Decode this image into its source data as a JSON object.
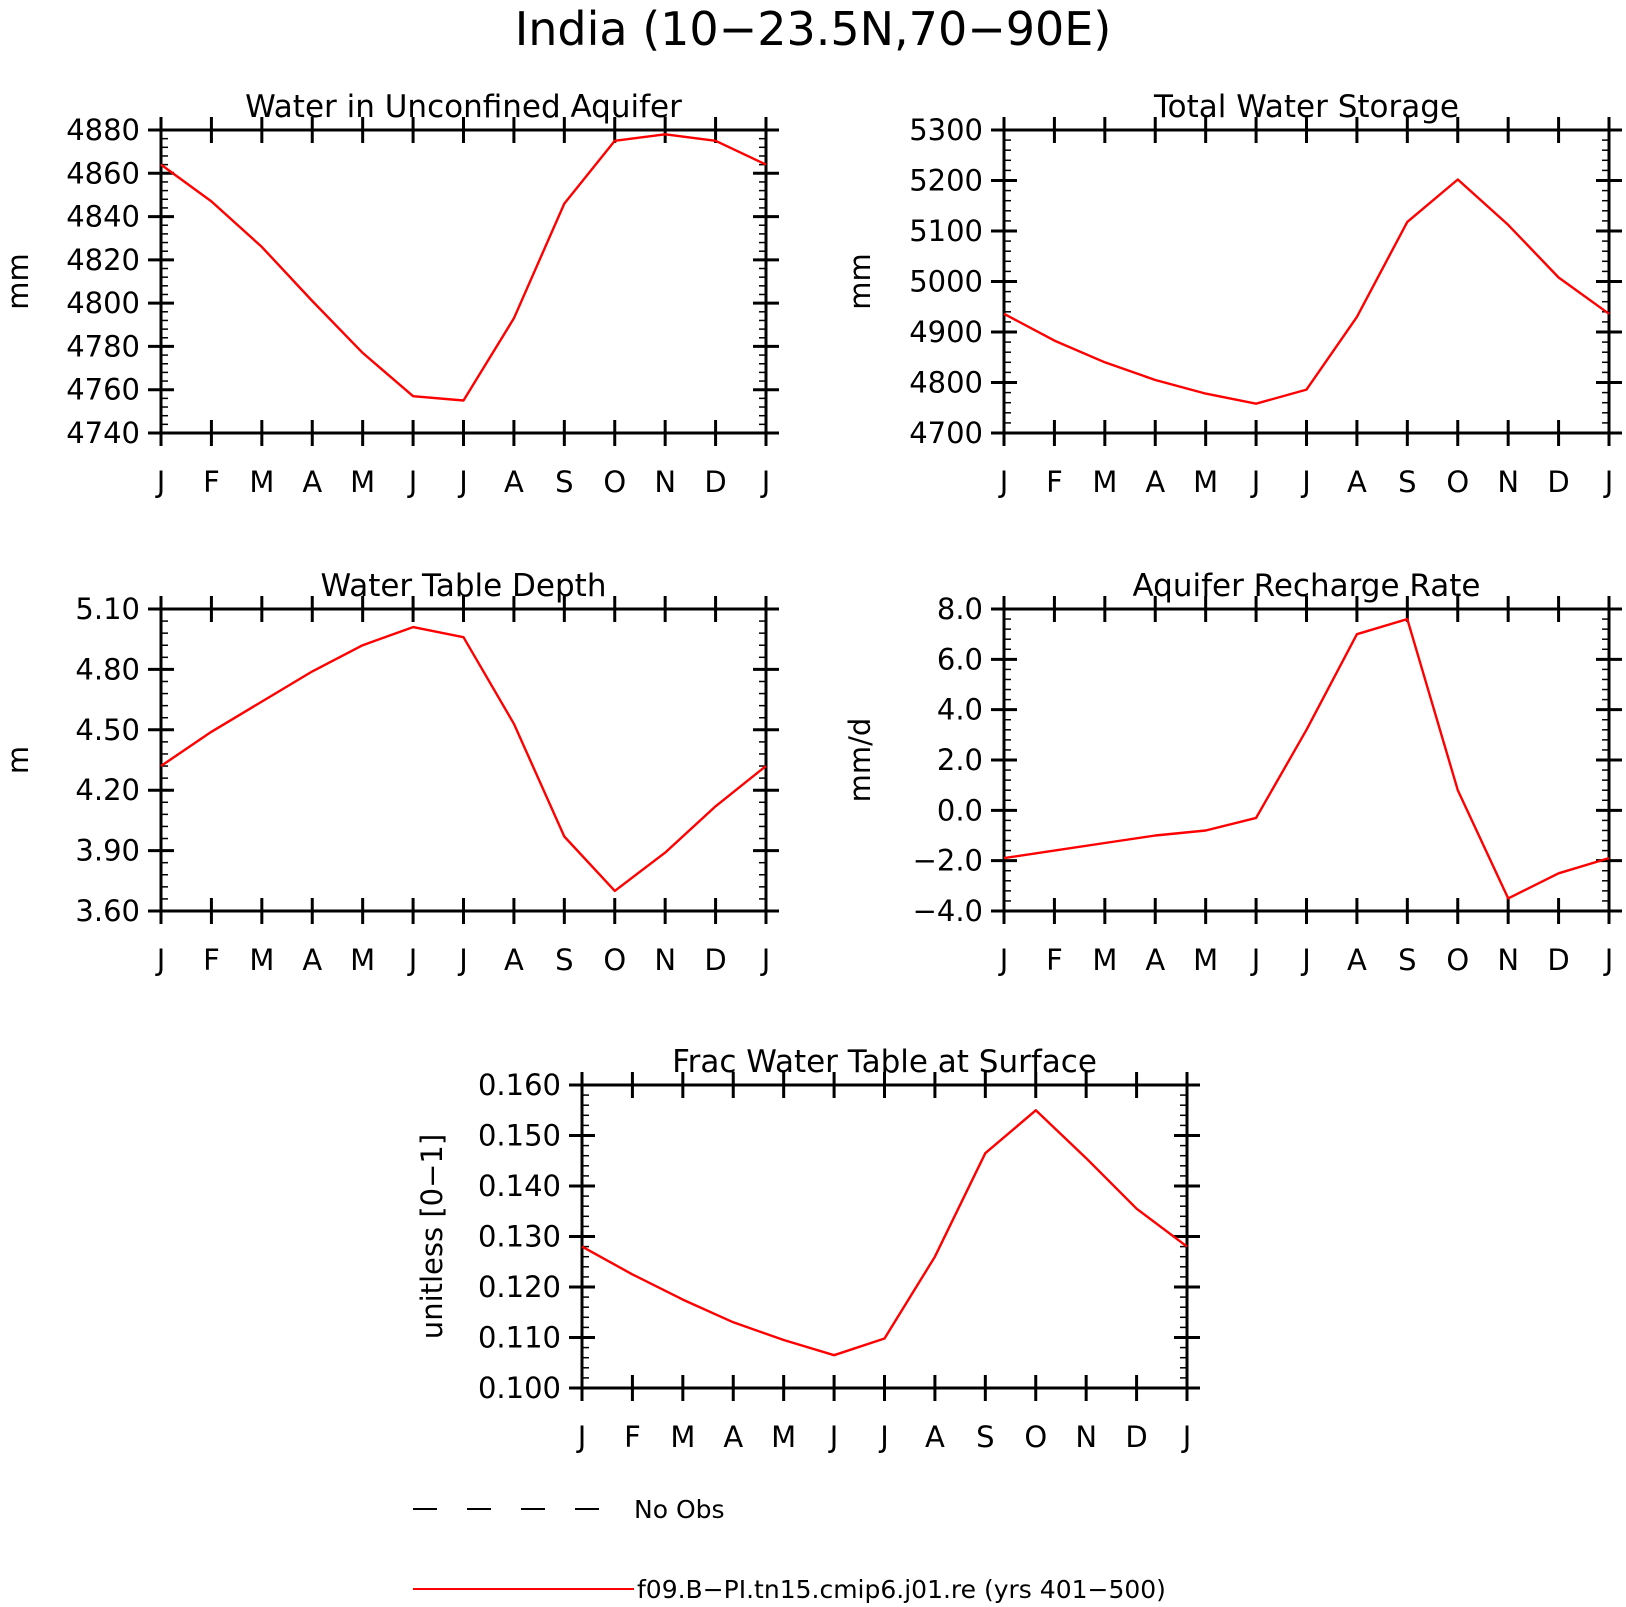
{
  "figure_title": "India (10−23.5N,70−90E)",
  "months": [
    "J",
    "F",
    "M",
    "A",
    "M",
    "J",
    "J",
    "A",
    "S",
    "O",
    "N",
    "D",
    "J"
  ],
  "colors": {
    "model": "#ff0000",
    "axes": "#000000"
  },
  "legend": {
    "no_obs_label": "No Obs",
    "model_label": "f09.B−PI.tn15.cmip6.j01.re (yrs 401−500)"
  },
  "chart_data": [
    {
      "type": "line",
      "title": "Water in Unconfined Aquifer",
      "ylabel": "mm",
      "ylim": [
        4740,
        4880
      ],
      "yticks": [
        4740,
        4760,
        4780,
        4800,
        4820,
        4840,
        4860,
        4880
      ],
      "ytick_labels": [
        "4740",
        "4760",
        "4780",
        "4800",
        "4820",
        "4840",
        "4860",
        "4880"
      ],
      "minor_step": 4,
      "categories": [
        "J",
        "F",
        "M",
        "A",
        "M",
        "J",
        "J",
        "A",
        "S",
        "O",
        "N",
        "D",
        "J"
      ],
      "values": [
        4864,
        4847,
        4826,
        4801,
        4777,
        4757,
        4755,
        4793,
        4846,
        4875,
        4878,
        4875,
        4864
      ]
    },
    {
      "type": "line",
      "title": "Total Water Storage",
      "ylabel": "mm",
      "ylim": [
        4700,
        5300
      ],
      "yticks": [
        4700,
        4800,
        4900,
        5000,
        5100,
        5200,
        5300
      ],
      "ytick_labels": [
        "4700",
        "4800",
        "4900",
        "5000",
        "5100",
        "5200",
        "5300"
      ],
      "minor_step": 20,
      "categories": [
        "J",
        "F",
        "M",
        "A",
        "M",
        "J",
        "J",
        "A",
        "S",
        "O",
        "N",
        "D",
        "J"
      ],
      "values": [
        4936,
        4883,
        4840,
        4805,
        4778,
        4758,
        4786,
        4930,
        5118,
        5202,
        5112,
        5008,
        4936
      ]
    },
    {
      "type": "line",
      "title": "Water Table Depth",
      "ylabel": "m",
      "ylim": [
        3.6,
        5.1
      ],
      "yticks": [
        3.6,
        3.9,
        4.2,
        4.5,
        4.8,
        5.1
      ],
      "ytick_labels": [
        "3.60",
        "3.90",
        "4.20",
        "4.50",
        "4.80",
        "5.10"
      ],
      "minor_step": 0.06,
      "categories": [
        "J",
        "F",
        "M",
        "A",
        "M",
        "J",
        "J",
        "A",
        "S",
        "O",
        "N",
        "D",
        "J"
      ],
      "values": [
        4.32,
        4.49,
        4.64,
        4.79,
        4.92,
        5.01,
        4.96,
        4.53,
        3.97,
        3.7,
        3.89,
        4.12,
        4.32
      ]
    },
    {
      "type": "line",
      "title": "Aquifer Recharge Rate",
      "ylabel": "mm/d",
      "ylim": [
        -4,
        8
      ],
      "yticks": [
        -4,
        -2,
        0,
        2,
        4,
        6,
        8
      ],
      "ytick_labels": [
        "−4.0",
        "−2.0",
        "0.0",
        "2.0",
        "4.0",
        "6.0",
        "8.0"
      ],
      "minor_step": 0.4,
      "categories": [
        "J",
        "F",
        "M",
        "A",
        "M",
        "J",
        "J",
        "A",
        "S",
        "O",
        "N",
        "D",
        "J"
      ],
      "values": [
        -1.9,
        -1.6,
        -1.3,
        -1.0,
        -0.8,
        -0.3,
        3.2,
        7.0,
        7.6,
        0.8,
        -3.5,
        -2.5,
        -1.9
      ]
    },
    {
      "type": "line",
      "title": "Frac Water Table at Surface",
      "ylabel": "unitless [0−1]",
      "ylim": [
        0.1,
        0.16
      ],
      "yticks": [
        0.1,
        0.11,
        0.12,
        0.13,
        0.14,
        0.15,
        0.16
      ],
      "ytick_labels": [
        "0.100",
        "0.110",
        "0.120",
        "0.130",
        "0.140",
        "0.150",
        "0.160"
      ],
      "minor_step": 0.002,
      "categories": [
        "J",
        "F",
        "M",
        "A",
        "M",
        "J",
        "J",
        "A",
        "S",
        "O",
        "N",
        "D",
        "J"
      ],
      "values": [
        0.128,
        0.1225,
        0.1175,
        0.113,
        0.1095,
        0.1065,
        0.1098,
        0.126,
        0.1465,
        0.155,
        0.1455,
        0.1355,
        0.128
      ]
    }
  ]
}
